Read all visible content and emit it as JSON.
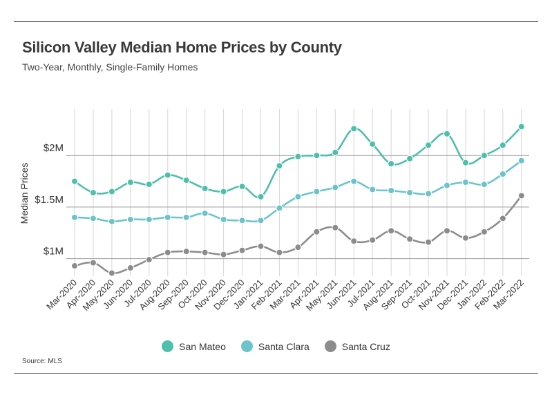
{
  "header": {
    "title": "Silicon Valley Median Home Prices by County",
    "subtitle": "Two-Year, Monthly, Single-Family Homes"
  },
  "footer": {
    "source": "Source:  MLS"
  },
  "chart_data": {
    "type": "line",
    "title": "Silicon Valley Median Home Prices by County",
    "subtitle": "Two-Year, Monthly, Single-Family Homes",
    "xlabel": "",
    "ylabel": "Median Prices",
    "ylim": [
      0.83,
      2.45
    ],
    "yticks": [
      {
        "value": 1.0,
        "label": "$1M"
      },
      {
        "value": 1.5,
        "label": "$1.5M"
      },
      {
        "value": 2.0,
        "label": "$2M"
      }
    ],
    "grid": "both",
    "legend_position": "bottom-center",
    "categories": [
      "Mar-2020",
      "Apr-2020",
      "May-2020",
      "Jun-2020",
      "Jul-2020",
      "Aug-2020",
      "Sep-2020",
      "Oct-2020",
      "Nov-2020",
      "Dec-2020",
      "Jan-2021",
      "Feb-2021",
      "Mar-2021",
      "Apr-2021",
      "May-2021",
      "Jun-2021",
      "Jul-2021",
      "Aug-2021",
      "Sep-2021",
      "Oct-2021",
      "Nov-2021",
      "Dec-2021",
      "Jan-2022",
      "Feb-2022",
      "Mar-2022"
    ],
    "series": [
      {
        "name": "San Mateo",
        "color": "#4dbfad",
        "values": [
          1.75,
          1.64,
          1.65,
          1.74,
          1.72,
          1.81,
          1.76,
          1.68,
          1.65,
          1.7,
          1.6,
          1.9,
          1.99,
          2.0,
          2.03,
          2.26,
          2.11,
          1.92,
          1.97,
          2.1,
          2.21,
          1.93,
          2.0,
          2.1,
          2.28
        ]
      },
      {
        "name": "Santa Clara",
        "color": "#6cc4cb",
        "values": [
          1.4,
          1.39,
          1.36,
          1.38,
          1.38,
          1.4,
          1.4,
          1.44,
          1.38,
          1.37,
          1.37,
          1.49,
          1.6,
          1.65,
          1.69,
          1.75,
          1.67,
          1.66,
          1.64,
          1.63,
          1.71,
          1.74,
          1.72,
          1.82,
          1.95
        ]
      },
      {
        "name": "Santa Cruz",
        "color": "#8c8c8c",
        "values": [
          0.93,
          0.96,
          0.86,
          0.91,
          0.99,
          1.06,
          1.07,
          1.06,
          1.04,
          1.08,
          1.12,
          1.06,
          1.11,
          1.26,
          1.3,
          1.17,
          1.18,
          1.27,
          1.19,
          1.16,
          1.27,
          1.2,
          1.26,
          1.39,
          1.61
        ]
      }
    ]
  }
}
